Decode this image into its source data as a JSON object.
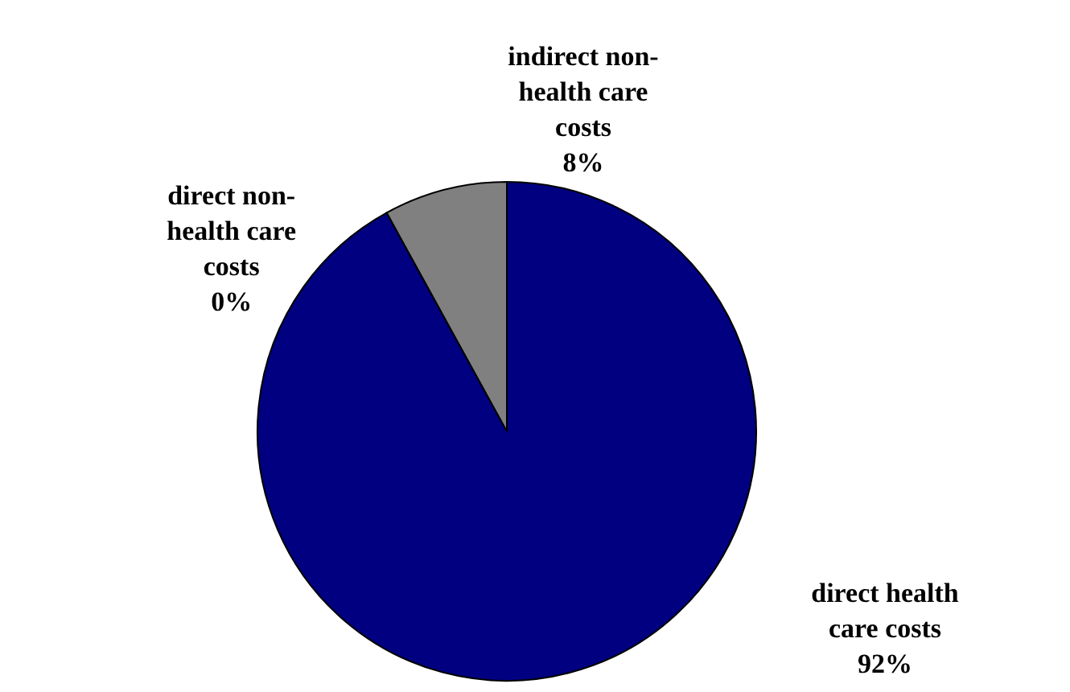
{
  "chart_data": {
    "type": "pie",
    "categories": [
      "direct health care costs",
      "direct non-health care costs",
      "indirect non-health care costs"
    ],
    "values": [
      92,
      0,
      8
    ],
    "colors": [
      "#000080",
      "#ffffff",
      "#808080"
    ],
    "value_labels": [
      "92%",
      "0%",
      "8%"
    ],
    "legend": false
  }
}
